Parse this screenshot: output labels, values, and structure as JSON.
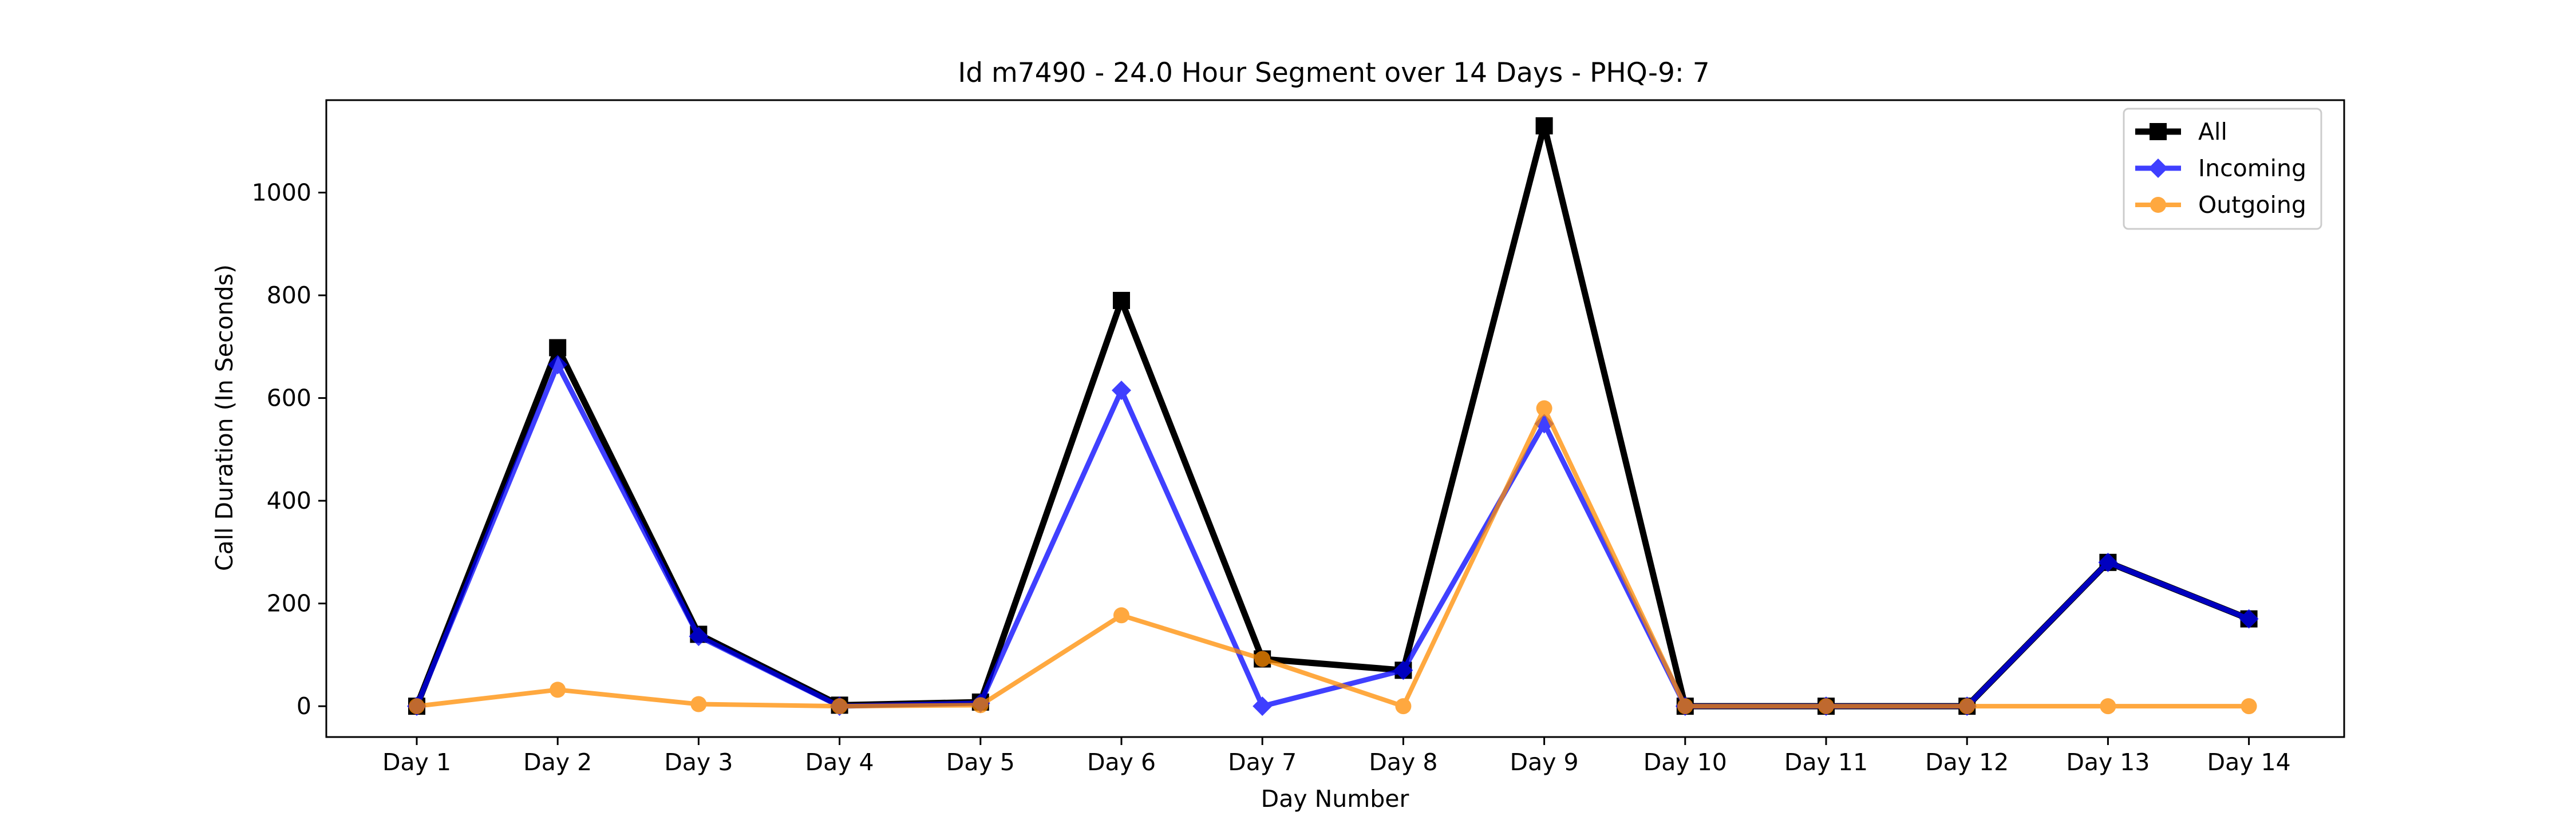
{
  "chart_data": {
    "type": "line",
    "title": "Id m7490 - 24.0 Hour Segment over 14 Days - PHQ-9: 7",
    "xlabel": "Day Number",
    "ylabel": "Call Duration (In Seconds)",
    "categories": [
      "Day 1",
      "Day 2",
      "Day 3",
      "Day 4",
      "Day 5",
      "Day 6",
      "Day 7",
      "Day 8",
      "Day 9",
      "Day 10",
      "Day 11",
      "Day 12",
      "Day 13",
      "Day 14"
    ],
    "ylim": [
      -60,
      1180
    ],
    "yticks": [
      0,
      200,
      400,
      600,
      800,
      1000
    ],
    "grid": false,
    "legend_position": "top-right",
    "series": [
      {
        "name": "All",
        "color": "#000000",
        "marker": "square",
        "values": [
          0,
          698,
          140,
          2,
          8,
          790,
          92,
          70,
          1130,
          0,
          0,
          0,
          280,
          170
        ]
      },
      {
        "name": "Incoming",
        "color": "#0000ff",
        "marker": "diamond",
        "values": [
          0,
          665,
          136,
          0,
          6,
          615,
          0,
          70,
          550,
          0,
          0,
          0,
          280,
          170
        ]
      },
      {
        "name": "Outgoing",
        "color": "#ff8c00",
        "marker": "circle",
        "values": [
          0,
          32,
          4,
          0,
          2,
          177,
          92,
          0,
          580,
          0,
          0,
          0,
          0,
          0
        ]
      }
    ]
  }
}
